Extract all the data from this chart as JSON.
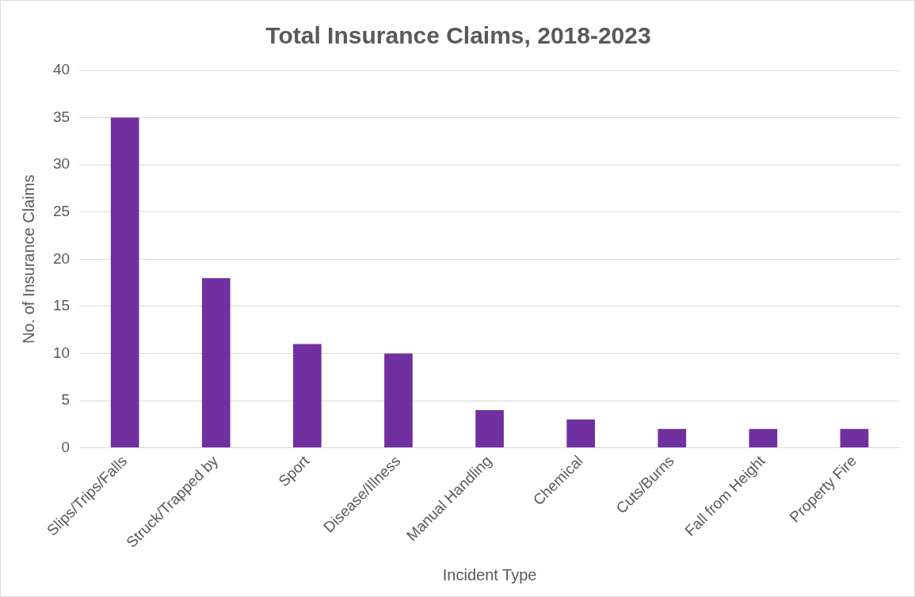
{
  "chart_data": {
    "type": "bar",
    "title": "Total Insurance Claims, 2018-2023",
    "xlabel": "Incident Type",
    "ylabel": "No. of Insurance Claims",
    "categories": [
      "Slips/Trips/Falls",
      "Struck/Trapped by",
      "Sport",
      "Disease/Illness",
      "Manual Handling",
      "Chemical",
      "Cuts/Burns",
      "Fall from Height",
      "Property Fire"
    ],
    "values": [
      35,
      18,
      11,
      10,
      4,
      3,
      2,
      2,
      2
    ],
    "color": "#7030a0",
    "ylim": [
      0,
      40
    ],
    "yticks": [
      0,
      5,
      10,
      15,
      20,
      25,
      30,
      35,
      40
    ],
    "grid": "y",
    "legend": false
  }
}
